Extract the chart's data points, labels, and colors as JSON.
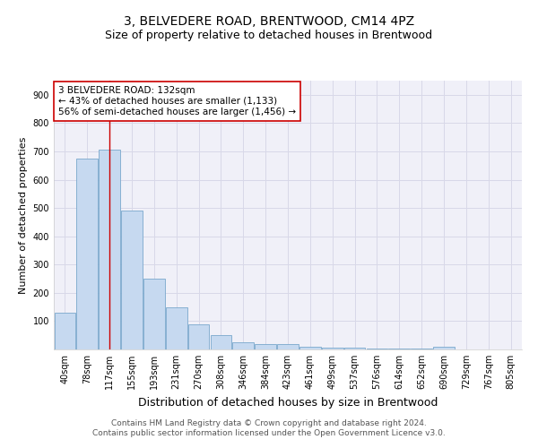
{
  "title": "3, BELVEDERE ROAD, BRENTWOOD, CM14 4PZ",
  "subtitle": "Size of property relative to detached houses in Brentwood",
  "xlabel": "Distribution of detached houses by size in Brentwood",
  "ylabel": "Number of detached properties",
  "categories": [
    "40sqm",
    "78sqm",
    "117sqm",
    "155sqm",
    "193sqm",
    "231sqm",
    "270sqm",
    "308sqm",
    "346sqm",
    "384sqm",
    "423sqm",
    "461sqm",
    "499sqm",
    "537sqm",
    "576sqm",
    "614sqm",
    "652sqm",
    "690sqm",
    "729sqm",
    "767sqm",
    "805sqm"
  ],
  "values": [
    130,
    675,
    705,
    490,
    250,
    150,
    90,
    50,
    25,
    20,
    20,
    10,
    6,
    5,
    4,
    3,
    3,
    8,
    0,
    0,
    0
  ],
  "bar_color": "#c6d9f0",
  "bar_edge_color": "#7aa8cc",
  "highlight_bar_index": 2,
  "highlight_line_color": "#cc0000",
  "annotation_text": "3 BELVEDERE ROAD: 132sqm\n← 43% of detached houses are smaller (1,133)\n56% of semi-detached houses are larger (1,456) →",
  "annotation_box_color": "#cc0000",
  "ylim": [
    0,
    950
  ],
  "yticks": [
    0,
    100,
    200,
    300,
    400,
    500,
    600,
    700,
    800,
    900
  ],
  "grid_color": "#d8d8e8",
  "bg_color": "#f0f0f8",
  "footer": "Contains HM Land Registry data © Crown copyright and database right 2024.\nContains public sector information licensed under the Open Government Licence v3.0.",
  "title_fontsize": 10,
  "subtitle_fontsize": 9,
  "xlabel_fontsize": 9,
  "ylabel_fontsize": 8,
  "tick_fontsize": 7,
  "annotation_fontsize": 7.5,
  "footer_fontsize": 6.5
}
